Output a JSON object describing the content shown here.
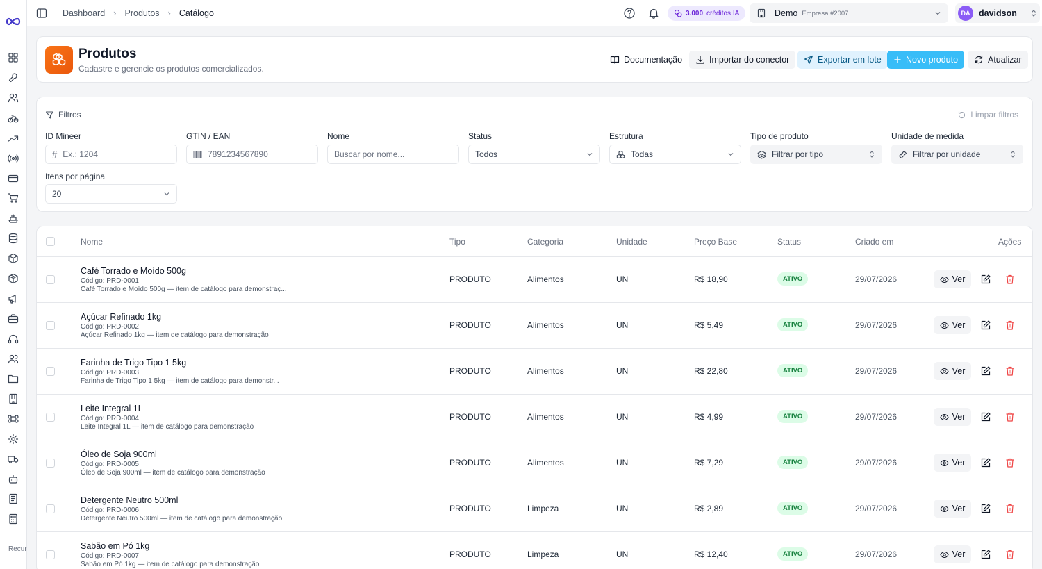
{
  "rail": {
    "icons": [
      "dashboard-icon",
      "wrench-icon",
      "users-icon",
      "bike-icon",
      "trending-icon",
      "antenna-icon",
      "credit-card-icon",
      "cart-icon",
      "ship-icon",
      "database-icon",
      "box-icon",
      "package-icon",
      "megaphone-icon",
      "briefcase-icon",
      "headset-icon",
      "user-group-icon",
      "folder-icon",
      "building-icon",
      "command-icon",
      "settings-icon",
      "truck-icon",
      "bot-icon",
      "receipt-icon",
      "calculator-icon"
    ],
    "footer_text": "Recursos avançados"
  },
  "breadcrumb": [
    "Dashboard",
    "Produtos",
    "Catálogo"
  ],
  "topbar": {
    "credits_value": "3.000",
    "credits_label": "créditos IA",
    "org_name": "Demo",
    "org_sub": "Empresa #2007",
    "user_initials": "DA",
    "user_name": "davidson"
  },
  "page": {
    "title": "Produtos",
    "subtitle": "Cadastre e gerencie os produtos comercializados.",
    "actions": {
      "docs": "Documentação",
      "import": "Importar do conector",
      "export": "Exportar em lote",
      "new": "Novo produto",
      "refresh": "Atualizar"
    }
  },
  "filters": {
    "title": "Filtros",
    "clear": "Limpar filtros",
    "id_label": "ID Mineer",
    "id_placeholder": "Ex.: 1204",
    "gtin_label": "GTIN / EAN",
    "gtin_placeholder": "7891234567890",
    "name_label": "Nome",
    "name_placeholder": "Buscar por nome...",
    "status_label": "Status",
    "status_value": "Todos",
    "structure_label": "Estrutura",
    "structure_value": "Todas",
    "type_label": "Tipo de produto",
    "type_value": "Filtrar por tipo",
    "unit_label": "Unidade de medida",
    "unit_value": "Filtrar por unidade",
    "per_page_label": "Itens por página",
    "per_page_value": "20"
  },
  "table": {
    "headers": {
      "name": "Nome",
      "type": "Tipo",
      "category": "Categoria",
      "unit": "Unidade",
      "price": "Preço Base",
      "status": "Status",
      "created": "Criado em",
      "actions": "Ações"
    },
    "view_label": "Ver",
    "rows": [
      {
        "name": "Café Torrado e Moído 500g",
        "code": "Código: PRD-0001",
        "desc": "Café Torrado e Moído 500g — item de catálogo para demonstraç...",
        "type": "PRODUTO",
        "category": "Alimentos",
        "unit": "UN",
        "price": "R$ 18,90",
        "status": "ATIVO",
        "created": "29/07/2026"
      },
      {
        "name": "Açúcar Refinado 1kg",
        "code": "Código: PRD-0002",
        "desc": "Açúcar Refinado 1kg — item de catálogo para demonstração",
        "type": "PRODUTO",
        "category": "Alimentos",
        "unit": "UN",
        "price": "R$ 5,49",
        "status": "ATIVO",
        "created": "29/07/2026"
      },
      {
        "name": "Farinha de Trigo Tipo 1 5kg",
        "code": "Código: PRD-0003",
        "desc": "Farinha de Trigo Tipo 1 5kg — item de catálogo para demonstr...",
        "type": "PRODUTO",
        "category": "Alimentos",
        "unit": "UN",
        "price": "R$ 22,80",
        "status": "ATIVO",
        "created": "29/07/2026"
      },
      {
        "name": "Leite Integral 1L",
        "code": "Código: PRD-0004",
        "desc": "Leite Integral 1L — item de catálogo para demonstração",
        "type": "PRODUTO",
        "category": "Alimentos",
        "unit": "UN",
        "price": "R$ 4,99",
        "status": "ATIVO",
        "created": "29/07/2026"
      },
      {
        "name": "Óleo de Soja 900ml",
        "code": "Código: PRD-0005",
        "desc": "Óleo de Soja 900ml — item de catálogo para demonstração",
        "type": "PRODUTO",
        "category": "Alimentos",
        "unit": "UN",
        "price": "R$ 7,29",
        "status": "ATIVO",
        "created": "29/07/2026"
      },
      {
        "name": "Detergente Neutro 500ml",
        "code": "Código: PRD-0006",
        "desc": "Detergente Neutro 500ml — item de catálogo para demonstração",
        "type": "PRODUTO",
        "category": "Limpeza",
        "unit": "UN",
        "price": "R$ 2,89",
        "status": "ATIVO",
        "created": "29/07/2026"
      },
      {
        "name": "Sabão em Pó 1kg",
        "code": "Código: PRD-0007",
        "desc": "Sabão em Pó 1kg — item de catálogo para demonstração",
        "type": "PRODUTO",
        "category": "Limpeza",
        "unit": "UN",
        "price": "R$ 12,40",
        "status": "ATIVO",
        "created": "29/07/2026"
      }
    ]
  },
  "colors": {
    "accent": "#38bdf8",
    "brand_orange": "#f97316",
    "danger": "#ef4444",
    "success_bg": "#dcfce7",
    "success_fg": "#15803d",
    "credits_bg": "#ede9fe"
  }
}
